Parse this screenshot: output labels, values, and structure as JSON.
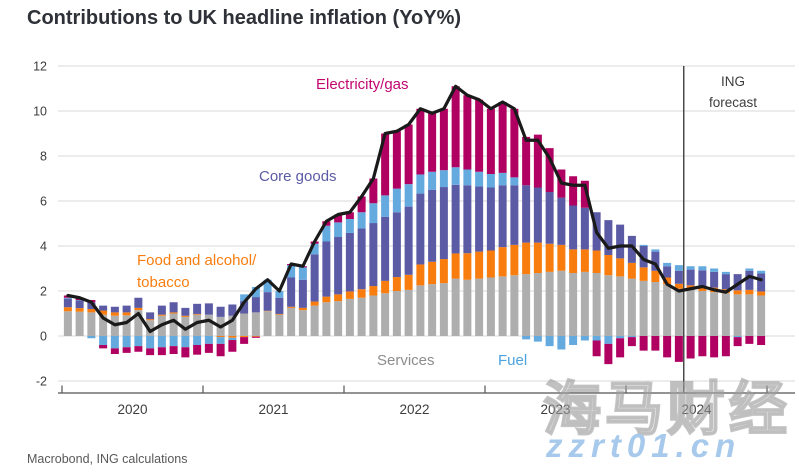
{
  "title": "Contributions to UK headline inflation (YoY%)",
  "source": "Macrobond, ING calculations",
  "watermark": {
    "cjk": "海马财经",
    "url": "zzrt01.cn"
  },
  "annotations": {
    "electricity_gas": "Electricity/gas",
    "core_goods": "Core goods",
    "food_line1": "Food and alcohol/",
    "food_line2": "tobacco",
    "services": "Services",
    "fuel": "Fuel",
    "forecast_line1": "ING",
    "forecast_line2": "forecast"
  },
  "chart_data": {
    "type": "bar",
    "subtype": "stacked-bar-with-line",
    "title": "Contributions to UK headline inflation (YoY%)",
    "xlabel": "",
    "ylabel": "",
    "ylim": [
      -2,
      12
    ],
    "yticks": [
      -2,
      0,
      2,
      4,
      6,
      8,
      10,
      12
    ],
    "grid": true,
    "legend_position": "inline-annotations",
    "year_labels": [
      "2020",
      "2021",
      "2022",
      "2023",
      "2024"
    ],
    "forecast_start": "2024-06",
    "colors": {
      "grid": "#d9d9d9",
      "axis": "#555555",
      "tick_label": "#3d3d3d",
      "forecast_rule": "#404040"
    },
    "x": [
      "2020-01",
      "2020-02",
      "2020-03",
      "2020-04",
      "2020-05",
      "2020-06",
      "2020-07",
      "2020-08",
      "2020-09",
      "2020-10",
      "2020-11",
      "2020-12",
      "2021-01",
      "2021-02",
      "2021-03",
      "2021-04",
      "2021-05",
      "2021-06",
      "2021-07",
      "2021-08",
      "2021-09",
      "2021-10",
      "2021-11",
      "2021-12",
      "2022-01",
      "2022-02",
      "2022-03",
      "2022-04",
      "2022-05",
      "2022-06",
      "2022-07",
      "2022-08",
      "2022-09",
      "2022-10",
      "2022-11",
      "2022-12",
      "2023-01",
      "2023-02",
      "2023-03",
      "2023-04",
      "2023-05",
      "2023-06",
      "2023-07",
      "2023-08",
      "2023-09",
      "2023-10",
      "2023-11",
      "2023-12",
      "2024-01",
      "2024-02",
      "2024-03",
      "2024-04",
      "2024-05",
      "2024-06",
      "2024-07",
      "2024-08",
      "2024-09",
      "2024-10",
      "2024-11",
      "2024-12"
    ],
    "series": [
      {
        "name": "Services",
        "color": "#aeaeae",
        "values": [
          1.1,
          1.08,
          1.05,
          0.95,
          0.9,
          0.92,
          1.15,
          0.7,
          0.9,
          1.0,
          0.85,
          0.95,
          0.95,
          0.85,
          0.9,
          1.0,
          1.05,
          1.1,
          0.95,
          1.25,
          1.15,
          1.35,
          1.5,
          1.55,
          1.65,
          1.7,
          1.8,
          1.9,
          2.0,
          2.05,
          2.25,
          2.3,
          2.35,
          2.55,
          2.5,
          2.55,
          2.6,
          2.65,
          2.7,
          2.75,
          2.8,
          2.85,
          2.9,
          2.8,
          2.85,
          2.8,
          2.7,
          2.65,
          2.55,
          2.45,
          2.4,
          2.3,
          2.1,
          2.05,
          2.0,
          1.95,
          1.9,
          1.85,
          1.85,
          1.8
        ]
      },
      {
        "name": "Food and alcohol/tobacco",
        "color": "#f87d0e",
        "values": [
          0.18,
          0.16,
          0.15,
          0.18,
          0.15,
          0.13,
          0.1,
          0.05,
          0.05,
          0.05,
          0.05,
          0.03,
          0.0,
          -0.05,
          -0.08,
          -0.05,
          -0.03,
          0.02,
          0.03,
          0.05,
          0.1,
          0.18,
          0.25,
          0.3,
          0.33,
          0.38,
          0.42,
          0.55,
          0.62,
          0.67,
          0.93,
          1.0,
          1.07,
          1.12,
          1.18,
          1.2,
          1.2,
          1.3,
          1.35,
          1.4,
          1.35,
          1.25,
          1.15,
          1.05,
          1.0,
          1.0,
          0.9,
          0.8,
          0.7,
          0.6,
          0.5,
          0.3,
          0.22,
          0.2,
          0.2,
          0.2,
          0.18,
          0.18,
          0.2,
          0.18
        ]
      },
      {
        "name": "Core goods",
        "color": "#5b5aa5",
        "values": [
          0.38,
          0.34,
          0.3,
          0.22,
          0.25,
          0.3,
          0.45,
          0.3,
          0.4,
          0.45,
          0.35,
          0.45,
          0.5,
          0.45,
          0.5,
          0.55,
          0.68,
          0.83,
          0.72,
          1.3,
          1.25,
          2.1,
          2.45,
          2.55,
          2.6,
          2.7,
          2.8,
          2.85,
          2.88,
          3.03,
          3.15,
          3.2,
          3.2,
          3.05,
          3.02,
          2.9,
          2.8,
          2.75,
          2.65,
          2.55,
          2.45,
          2.3,
          2.1,
          1.95,
          1.85,
          1.7,
          1.55,
          1.5,
          1.2,
          0.95,
          0.85,
          0.5,
          0.58,
          0.7,
          0.72,
          0.7,
          0.67,
          0.72,
          0.85,
          0.8
        ]
      },
      {
        "name": "Fuel",
        "color": "#64aadf",
        "values": [
          0.04,
          0.02,
          -0.1,
          -0.4,
          -0.55,
          -0.5,
          -0.45,
          -0.55,
          -0.5,
          -0.45,
          -0.5,
          -0.4,
          -0.35,
          -0.3,
          -0.1,
          0.3,
          0.45,
          0.55,
          0.3,
          0.55,
          0.55,
          0.47,
          0.7,
          0.65,
          0.62,
          0.72,
          0.88,
          0.95,
          1.05,
          1.0,
          0.85,
          0.8,
          0.75,
          0.78,
          0.7,
          0.65,
          0.6,
          0.55,
          0.35,
          -0.15,
          -0.25,
          -0.45,
          -0.6,
          -0.4,
          -0.2,
          -0.2,
          -0.35,
          -0.1,
          -0.05,
          0.05,
          0.1,
          0.15,
          0.25,
          0.15,
          0.18,
          0.15,
          0.1,
          -0.05,
          0.1,
          0.12
        ]
      },
      {
        "name": "Electricity/gas",
        "color": "#b00061",
        "values": [
          0.1,
          0.1,
          0.1,
          -0.15,
          -0.25,
          -0.25,
          -0.25,
          -0.3,
          -0.35,
          -0.35,
          -0.45,
          -0.43,
          -0.4,
          -0.55,
          -0.52,
          -0.3,
          -0.05,
          0.0,
          0.0,
          0.05,
          0.05,
          0.1,
          0.2,
          0.35,
          0.3,
          0.7,
          1.1,
          2.75,
          2.55,
          2.65,
          2.92,
          2.6,
          2.73,
          3.6,
          3.3,
          3.2,
          2.9,
          3.15,
          3.05,
          2.15,
          2.35,
          1.95,
          1.25,
          1.3,
          1.2,
          -0.7,
          -0.9,
          -0.85,
          -0.4,
          -0.65,
          -0.65,
          -0.95,
          -1.15,
          -1.0,
          -0.9,
          -0.95,
          -0.9,
          -0.4,
          -0.35,
          -0.4
        ]
      }
    ],
    "line": {
      "name": "Headline CPI YoY%",
      "color": "#1a1a1a",
      "values": [
        1.8,
        1.7,
        1.5,
        0.8,
        0.5,
        0.6,
        1.0,
        0.2,
        0.5,
        0.7,
        0.3,
        0.6,
        0.7,
        0.4,
        0.7,
        1.5,
        2.1,
        2.5,
        2.0,
        3.2,
        3.1,
        4.2,
        5.1,
        5.4,
        5.5,
        6.2,
        7.0,
        9.0,
        9.1,
        9.4,
        10.1,
        9.9,
        10.1,
        11.1,
        10.7,
        10.5,
        10.1,
        10.4,
        10.1,
        8.7,
        8.7,
        7.9,
        6.8,
        6.7,
        6.7,
        4.6,
        3.9,
        4.0,
        4.0,
        3.4,
        3.2,
        2.3,
        2.0,
        2.1,
        2.2,
        2.05,
        1.95,
        2.3,
        2.65,
        2.5
      ]
    }
  }
}
